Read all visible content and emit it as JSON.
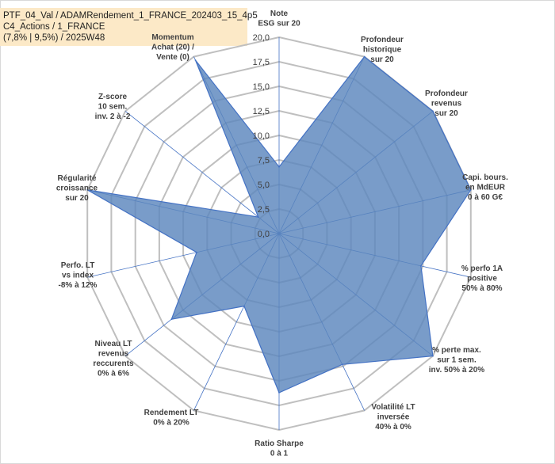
{
  "title_lines": [
    "PTF_04_Val / ADAMRendement_1_FRANCE_202403_15_4p5",
    "C4_Actions / 1_FRANCE",
    "(7,8% | 9,5%) / 2025W48"
  ],
  "chart_data": {
    "type": "radar",
    "rmin": 0,
    "rmax": 20,
    "ticks": [
      "0,0",
      "2,5",
      "5,0",
      "7,5",
      "10,0",
      "12,5",
      "15,0",
      "17,5",
      "20,0"
    ],
    "fill_color": "#5b86bd",
    "line_color": "#4472c4",
    "grid_color": "#bfbfbf",
    "axes": [
      {
        "label": [
          "Note",
          "ESG sur 20"
        ],
        "value": 6.8
      },
      {
        "label": [
          "Profondeur",
          "historique",
          "sur 20"
        ],
        "value": 20
      },
      {
        "label": [
          "Profondeur",
          "revenus",
          "sur 20"
        ],
        "value": 20
      },
      {
        "label": [
          "Capi. bours.",
          "en MdEUR",
          "0 à 60 G€"
        ],
        "value": 20
      },
      {
        "label": [
          "% perfo 1A",
          "positive",
          "50% à 80%"
        ],
        "value": 14.8
      },
      {
        "label": [
          "% perte max.",
          "sur 1 sem.",
          "inv. 50% à 20%"
        ],
        "value": 20
      },
      {
        "label": [
          "Volatilité LT",
          "inversée",
          "40% à 0%"
        ],
        "value": 14.8
      },
      {
        "label": [
          "Ratio Sharpe",
          "0 à 1"
        ],
        "value": 16.2
      },
      {
        "label": [
          "Rendement LT",
          "0% à 20%"
        ],
        "value": 8.2
      },
      {
        "label": [
          "Niveau LT",
          "revenus",
          "reccurents",
          "0% à 6%"
        ],
        "value": 14
      },
      {
        "label": [
          "Perfo. LT",
          "vs index",
          "-8% à 12%"
        ],
        "value": 8.6
      },
      {
        "label": [
          "Régularité",
          "croissance",
          "sur 20"
        ],
        "value": 20
      },
      {
        "label": [
          "Z-score",
          "10 sem.",
          "inv. 2 à -2"
        ],
        "value": 2.7
      },
      {
        "label": [
          "Momentum",
          "Achat (20) /",
          "Vente (0)"
        ],
        "value": 19.6
      }
    ]
  }
}
